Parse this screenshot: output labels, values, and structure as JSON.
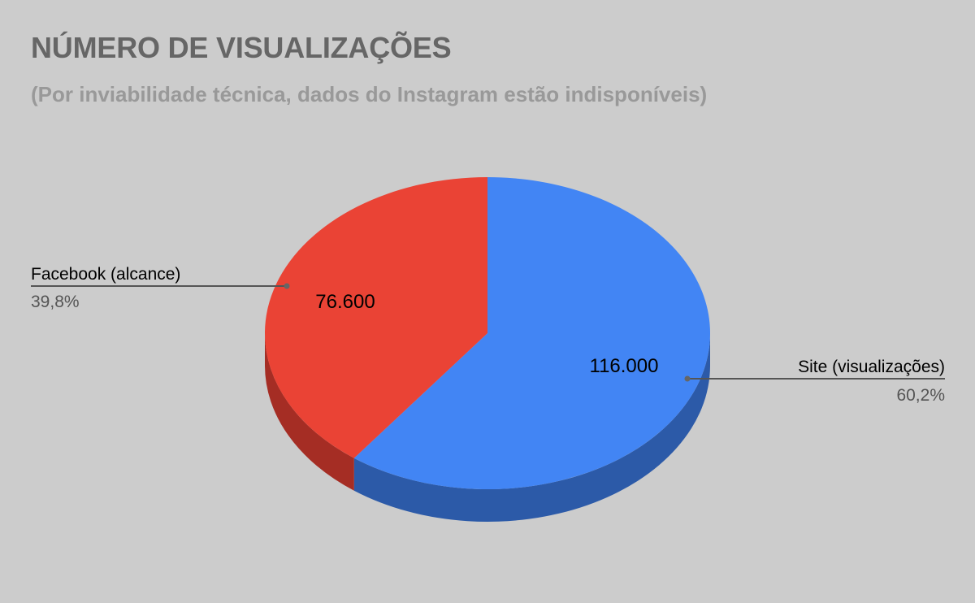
{
  "chart_data": {
    "type": "pie",
    "title": "NÚMERO DE VISUALIZAÇÕES",
    "subtitle": "(Por inviabilidade técnica, dados do Instagram estão indisponíveis)",
    "three_d": true,
    "slices": [
      {
        "name": "Site (visualizações)",
        "value": 116000,
        "value_label": "116.000",
        "percent_label": "60,2%",
        "color": "#4285f4",
        "side_color": "#2c5aa8"
      },
      {
        "name": "Facebook (alcance)",
        "value": 76600,
        "value_label": "76.600",
        "percent_label": "39,8%",
        "color": "#ea4335",
        "side_color": "#a52d24"
      }
    ],
    "background": "#cccccc"
  }
}
